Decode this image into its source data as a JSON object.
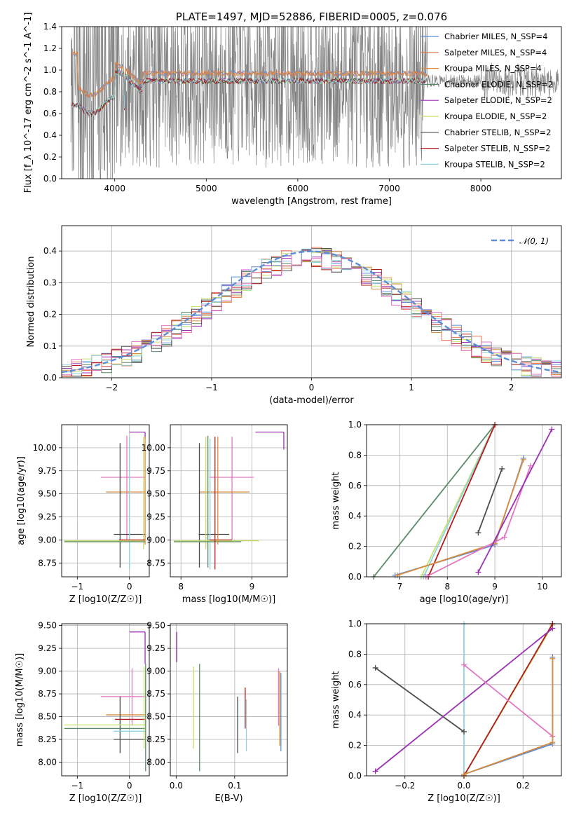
{
  "chart_data": [
    {
      "type": "line",
      "title": "PLATE=1497, MJD=52886, FIBERID=0005, z=0.076",
      "xlabel": "wavelength [Angstrom, rest frame]",
      "ylabel": "Flux [f_λ 10^-17 erg cm^-2 s^-1 A^-1]",
      "xlim": [
        3420,
        8880
      ],
      "ylim": [
        0,
        1.4
      ],
      "xticks": [
        4000,
        5000,
        6000,
        7000,
        8000
      ],
      "yticks": [
        0.0,
        0.2,
        0.4,
        0.6,
        0.8,
        1.0,
        1.2,
        1.4
      ],
      "grid": false,
      "legend_position": "upper right",
      "series": [
        {
          "name": "Chabrier MILES, N_SSP=4",
          "color": "#5b8dd9",
          "group": "high"
        },
        {
          "name": "Salpeter MILES, N_SSP=4",
          "color": "#e8744a",
          "group": "high"
        },
        {
          "name": "Kroupa MILES, N_SSP=4",
          "color": "#d98c3c",
          "group": "high"
        },
        {
          "name": "Chabrier ELODIE, N_SSP=2",
          "color": "#5a8a6a",
          "group": "low"
        },
        {
          "name": "Salpeter ELODIE, N_SSP=2",
          "color": "#9b30b5",
          "group": "low"
        },
        {
          "name": "Kroupa ELODIE, N_SSP=2",
          "color": "#c8e06e",
          "group": "low"
        },
        {
          "name": "Chabrier STELIB, N_SSP=2",
          "color": "#4d4d4d",
          "group": "low"
        },
        {
          "name": "Salpeter STELIB, N_SSP=2",
          "color": "#b51c1c",
          "group": "low"
        },
        {
          "name": "Kroupa STELIB, N_SSP=2",
          "color": "#8fd3e0",
          "group": "low"
        }
      ],
      "data_color": "#808080",
      "data_range": [
        3520,
        8850
      ]
    },
    {
      "type": "histogram",
      "xlabel": "(data-model)/error",
      "ylabel": "Normed distribution",
      "xlim": [
        -2.5,
        2.5
      ],
      "ylim": [
        0,
        0.48
      ],
      "xticks": [
        -2,
        -1,
        0,
        1,
        2
      ],
      "yticks": [
        0.0,
        0.1,
        0.2,
        0.3,
        0.4
      ],
      "grid": true,
      "legend": "𝒩(0, 1)",
      "legend_position": "upper right",
      "reference_curve": {
        "mean": 0,
        "sigma": 1,
        "color": "#5b8dd9"
      },
      "bin_width": 0.1,
      "hist_colors": [
        "#5b8dd9",
        "#e8744a",
        "#d98c3c",
        "#5a8a6a",
        "#9b30b5",
        "#c8e06e",
        "#4d4d4d",
        "#b51c1c",
        "#8fd3e0",
        "#e377c2"
      ]
    },
    {
      "type": "errorbar",
      "xlabel": "Z [log10(Z/Z☉)]",
      "ylabel": "age  [log10(age/yr)]",
      "xlim": [
        -1.3,
        0.38
      ],
      "ylim": [
        8.6,
        10.25
      ],
      "xticks": [
        -1,
        0
      ],
      "yticks": [
        8.75,
        9.0,
        9.25,
        9.5,
        9.75,
        10.0
      ],
      "grid": true,
      "points": [
        {
          "color": "#9b30b5",
          "x": 0.3,
          "y": 10.17,
          "xlo": 0.0,
          "xhi": 0.3,
          "ylo": 10.17,
          "yhi": 10.17
        },
        {
          "color": "#9b30b5",
          "x": 0.3,
          "y": 10.17,
          "xlo": 0.3,
          "xhi": 0.3,
          "ylo": 10.1,
          "yhi": 10.17
        },
        {
          "color": "#e377c2",
          "x": 0.3,
          "y": 9.68,
          "xlo": -0.55,
          "xhi": 0.3,
          "ylo": 9.68,
          "yhi": 9.68
        },
        {
          "color": "#e377c2",
          "x": -0.05,
          "y": 9.6,
          "xlo": -0.05,
          "xhi": -0.05,
          "ylo": 9.0,
          "yhi": 10.13
        },
        {
          "color": "#d98c3c",
          "x": 0.3,
          "y": 9.52,
          "xlo": -0.45,
          "xhi": 0.3,
          "ylo": 9.52,
          "yhi": 9.52
        },
        {
          "color": "#d98c3c",
          "x": 0.3,
          "y": 9.6,
          "xlo": 0.3,
          "xhi": 0.3,
          "ylo": 8.95,
          "yhi": 10.12
        },
        {
          "color": "#4d4d4d",
          "x": -0.18,
          "y": 9.3,
          "xlo": -0.18,
          "xhi": -0.18,
          "ylo": 8.7,
          "yhi": 10.05
        },
        {
          "color": "#4d4d4d",
          "x": 0.3,
          "y": 9.06,
          "xlo": -0.3,
          "xhi": 0.3,
          "ylo": 9.06,
          "yhi": 9.06
        },
        {
          "color": "#8fd3e0",
          "x": 0.0,
          "y": 9.5,
          "xlo": 0.0,
          "xhi": 0.0,
          "ylo": 8.68,
          "yhi": 10.12
        },
        {
          "color": "#c8e06e",
          "x": 0.27,
          "y": 9.6,
          "xlo": 0.27,
          "xhi": 0.27,
          "ylo": 8.9,
          "yhi": 10.12
        },
        {
          "color": "#c8e06e",
          "x": 0.0,
          "y": 8.99,
          "xlo": -1.25,
          "xhi": 0.3,
          "ylo": 8.99,
          "yhi": 8.99
        },
        {
          "color": "#5a8a6a",
          "x": 0.0,
          "y": 8.98,
          "xlo": -1.25,
          "xhi": 0.3,
          "ylo": 8.98,
          "yhi": 8.98
        },
        {
          "color": "#b51c1c",
          "x": 0.0,
          "y": 9.0,
          "xlo": -0.2,
          "xhi": 0.3,
          "ylo": 9.0,
          "yhi": 9.0
        }
      ]
    },
    {
      "type": "errorbar",
      "xlabel": "mass [log10(M/M☉)]",
      "ylabel": "",
      "xlim": [
        7.85,
        9.5
      ],
      "ylim": [
        8.6,
        10.25
      ],
      "xticks": [
        8,
        9
      ],
      "yticks": [
        8.75,
        9.0,
        9.25,
        9.5,
        9.75,
        10.0
      ],
      "grid": true,
      "points": [
        {
          "color": "#9b30b5",
          "x": 9.45,
          "y": 10.17,
          "xlo": 9.05,
          "xhi": 9.45,
          "ylo": 10.17,
          "yhi": 10.17
        },
        {
          "color": "#9b30b5",
          "x": 9.45,
          "y": 10.1,
          "xlo": 9.45,
          "xhi": 9.45,
          "ylo": 9.98,
          "yhi": 10.17
        },
        {
          "color": "#e377c2",
          "x": 8.72,
          "y": 9.68,
          "xlo": 8.4,
          "xhi": 9.03,
          "ylo": 9.68,
          "yhi": 9.68
        },
        {
          "color": "#e377c2",
          "x": 8.72,
          "y": 9.6,
          "xlo": 8.72,
          "xhi": 8.72,
          "ylo": 9.0,
          "yhi": 10.12
        },
        {
          "color": "#d98c3c",
          "x": 8.52,
          "y": 9.52,
          "xlo": 8.25,
          "xhi": 8.97,
          "ylo": 9.52,
          "yhi": 9.52
        },
        {
          "color": "#4d4d4d",
          "x": 8.26,
          "y": 9.3,
          "xlo": 8.26,
          "xhi": 8.26,
          "ylo": 8.7,
          "yhi": 10.05
        },
        {
          "color": "#4d4d4d",
          "x": 8.47,
          "y": 9.06,
          "xlo": 8.25,
          "xhi": 8.68,
          "ylo": 9.06,
          "yhi": 9.06
        },
        {
          "color": "#5a8a6a",
          "x": 8.38,
          "y": 9.5,
          "xlo": 8.38,
          "xhi": 8.38,
          "ylo": 8.7,
          "yhi": 10.13
        },
        {
          "color": "#8fd3e0",
          "x": 8.41,
          "y": 9.5,
          "xlo": 8.41,
          "xhi": 8.41,
          "ylo": 8.68,
          "yhi": 10.1
        },
        {
          "color": "#c8e06e",
          "x": 8.35,
          "y": 9.6,
          "xlo": 8.35,
          "xhi": 8.35,
          "ylo": 8.9,
          "yhi": 10.12
        },
        {
          "color": "#c8e06e",
          "x": 8.5,
          "y": 8.99,
          "xlo": 7.9,
          "xhi": 9.1,
          "ylo": 8.99,
          "yhi": 8.99
        },
        {
          "color": "#5a8a6a",
          "x": 8.3,
          "y": 8.98,
          "xlo": 7.9,
          "xhi": 8.85,
          "ylo": 8.98,
          "yhi": 8.98
        },
        {
          "color": "#b51c1c",
          "x": 8.56,
          "y": 9.0,
          "xlo": 8.4,
          "xhi": 8.72,
          "ylo": 9.0,
          "yhi": 9.0
        },
        {
          "color": "#b51c1c",
          "x": 8.48,
          "y": 9.3,
          "xlo": 8.48,
          "xhi": 8.48,
          "ylo": 8.68,
          "yhi": 10.12
        },
        {
          "color": "#d98c3c",
          "x": 8.52,
          "y": 9.6,
          "xlo": 8.52,
          "xhi": 8.52,
          "ylo": 8.95,
          "yhi": 10.12
        }
      ]
    },
    {
      "type": "line",
      "xlabel": "age  [log10(age/yr)]",
      "ylabel": "mass weight",
      "xlim": [
        6.3,
        10.4
      ],
      "ylim": [
        0,
        1.0
      ],
      "xticks": [
        7,
        8,
        9,
        10
      ],
      "yticks": [
        0.0,
        0.2,
        0.4,
        0.6,
        0.8,
        1.0
      ],
      "grid": true,
      "series": [
        {
          "color": "#5a8a6a",
          "points": [
            [
              6.45,
              0.0
            ],
            [
              9.0,
              1.0
            ]
          ]
        },
        {
          "color": "#c8e06e",
          "points": [
            [
              7.45,
              0.0
            ],
            [
              9.0,
              1.0
            ]
          ]
        },
        {
          "color": "#8fd3e0",
          "points": [
            [
              7.5,
              0.0
            ],
            [
              9.0,
              1.0
            ]
          ]
        },
        {
          "color": "#b51c1c",
          "points": [
            [
              7.6,
              0.0
            ],
            [
              9.0,
              1.0
            ]
          ]
        },
        {
          "color": "#4d4d4d",
          "points": [
            [
              8.65,
              0.29
            ],
            [
              9.15,
              0.71
            ]
          ]
        },
        {
          "color": "#5b8dd9",
          "points": [
            [
              6.9,
              0.01
            ],
            [
              9.0,
              0.21
            ],
            [
              9.6,
              0.78
            ]
          ]
        },
        {
          "color": "#d98c3c",
          "points": [
            [
              6.95,
              0.01
            ],
            [
              9.0,
              0.22
            ],
            [
              9.6,
              0.77
            ]
          ]
        },
        {
          "color": "#e377c2",
          "points": [
            [
              7.55,
              0.0
            ],
            [
              9.2,
              0.26
            ],
            [
              9.75,
              0.73
            ]
          ]
        },
        {
          "color": "#9b30b5",
          "points": [
            [
              8.65,
              0.03
            ],
            [
              10.2,
              0.97
            ]
          ]
        }
      ]
    },
    {
      "type": "errorbar",
      "xlabel": "Z [log10(Z/Z☉)]",
      "ylabel": "mass [log10(M/M☉)]",
      "xlim": [
        -1.3,
        0.38
      ],
      "ylim": [
        7.85,
        9.52
      ],
      "xticks": [
        -1,
        0
      ],
      "yticks": [
        8.0,
        8.25,
        8.5,
        8.75,
        9.0,
        9.25,
        9.5
      ],
      "grid": true,
      "points": [
        {
          "color": "#9b30b5",
          "x": 0.3,
          "y": 9.43,
          "xlo": 0.0,
          "xhi": 0.3,
          "ylo": 9.43,
          "yhi": 9.43
        },
        {
          "color": "#9b30b5",
          "x": 0.3,
          "y": 9.3,
          "xlo": 0.3,
          "xhi": 0.3,
          "ylo": 9.08,
          "yhi": 9.43
        },
        {
          "color": "#e377c2",
          "x": 0.05,
          "y": 8.72,
          "xlo": -0.55,
          "xhi": 0.3,
          "ylo": 8.72,
          "yhi": 8.72
        },
        {
          "color": "#e377c2",
          "x": 0.05,
          "y": 8.72,
          "xlo": 0.05,
          "xhi": 0.05,
          "ylo": 8.4,
          "yhi": 9.03
        },
        {
          "color": "#d98c3c",
          "x": 0.0,
          "y": 8.52,
          "xlo": -0.45,
          "xhi": 0.3,
          "ylo": 8.52,
          "yhi": 8.52
        },
        {
          "color": "#b51c1c",
          "x": 0.0,
          "y": 8.47,
          "xlo": -0.28,
          "xhi": 0.3,
          "ylo": 8.47,
          "yhi": 8.47
        },
        {
          "color": "#4d4d4d",
          "x": -0.18,
          "y": 8.4,
          "xlo": -0.18,
          "xhi": -0.18,
          "ylo": 8.1,
          "yhi": 8.72
        },
        {
          "color": "#4d4d4d",
          "x": 0.0,
          "y": 8.25,
          "xlo": -0.3,
          "xhi": 0.3,
          "ylo": 8.25,
          "yhi": 8.25
        },
        {
          "color": "#c8e06e",
          "x": 0.0,
          "y": 8.41,
          "xlo": -1.25,
          "xhi": 0.3,
          "ylo": 8.41,
          "yhi": 8.41
        },
        {
          "color": "#5a8a6a",
          "x": 0.0,
          "y": 8.37,
          "xlo": -1.25,
          "xhi": 0.3,
          "ylo": 8.37,
          "yhi": 8.37
        },
        {
          "color": "#8fd3e0",
          "x": 0.0,
          "y": 8.34,
          "xlo": -0.3,
          "xhi": 0.3,
          "ylo": 8.34,
          "yhi": 8.34
        },
        {
          "color": "#c8e06e",
          "x": 0.28,
          "y": 8.6,
          "xlo": 0.28,
          "xhi": 0.28,
          "ylo": 8.15,
          "yhi": 9.05
        },
        {
          "color": "#5a8a6a",
          "x": 0.31,
          "y": 8.5,
          "xlo": 0.31,
          "xhi": 0.31,
          "ylo": 7.9,
          "yhi": 9.08
        }
      ]
    },
    {
      "type": "errorbar",
      "xlabel": "E(B-V)",
      "ylabel": "",
      "xlim": [
        -0.01,
        0.19
      ],
      "ylim": [
        7.85,
        9.52
      ],
      "xticks": [
        0.0,
        0.1
      ],
      "yticks": [
        8.0,
        8.25,
        8.5,
        8.75,
        9.0,
        9.25,
        9.5
      ],
      "grid": true,
      "points": [
        {
          "color": "#9b30b5",
          "x": 0.001,
          "y": 9.3,
          "xlo": 0.001,
          "xhi": 0.001,
          "ylo": 9.1,
          "yhi": 9.43
        },
        {
          "color": "#c8e06e",
          "x": 0.03,
          "y": 8.6,
          "xlo": 0.03,
          "xhi": 0.03,
          "ylo": 8.15,
          "yhi": 9.05
        },
        {
          "color": "#5a8a6a",
          "x": 0.04,
          "y": 8.5,
          "xlo": 0.04,
          "xhi": 0.04,
          "ylo": 7.9,
          "yhi": 9.08
        },
        {
          "color": "#4d4d4d",
          "x": 0.105,
          "y": 8.4,
          "xlo": 0.105,
          "xhi": 0.105,
          "ylo": 8.1,
          "yhi": 8.72
        },
        {
          "color": "#8fd3e0",
          "x": 0.12,
          "y": 8.4,
          "xlo": 0.12,
          "xhi": 0.12,
          "ylo": 8.12,
          "yhi": 8.69
        },
        {
          "color": "#b51c1c",
          "x": 0.118,
          "y": 8.6,
          "xlo": 0.118,
          "xhi": 0.118,
          "ylo": 8.37,
          "yhi": 8.82
        },
        {
          "color": "#e377c2",
          "x": 0.175,
          "y": 8.72,
          "xlo": 0.175,
          "xhi": 0.175,
          "ylo": 8.4,
          "yhi": 9.03
        },
        {
          "color": "#d98c3c",
          "x": 0.177,
          "y": 8.6,
          "xlo": 0.177,
          "xhi": 0.177,
          "ylo": 8.18,
          "yhi": 9.0
        },
        {
          "color": "#5b8dd9",
          "x": 0.179,
          "y": 8.55,
          "xlo": 0.179,
          "xhi": 0.179,
          "ylo": 8.12,
          "yhi": 8.98
        }
      ]
    },
    {
      "type": "line",
      "xlabel": "Z [log10(Z/Z☉)]",
      "ylabel": "mass weight",
      "xlim": [
        -0.33,
        0.33
      ],
      "ylim": [
        0,
        1.0
      ],
      "xticks": [
        -0.2,
        0.0,
        0.2
      ],
      "yticks": [
        0.0,
        0.2,
        0.4,
        0.6,
        0.8,
        1.0
      ],
      "grid": true,
      "series": [
        {
          "color": "#8fd3e0",
          "points": [
            [
              0.0,
              0.0
            ],
            [
              0.0,
              1.0
            ]
          ]
        },
        {
          "color": "#5a8a6a",
          "points": [
            [
              0.0,
              0.0
            ],
            [
              0.3,
              1.0
            ]
          ]
        },
        {
          "color": "#c8e06e",
          "points": [
            [
              0.0,
              0.0
            ],
            [
              0.3,
              0.99
            ]
          ]
        },
        {
          "color": "#b51c1c",
          "points": [
            [
              0.0,
              0.0
            ],
            [
              0.3,
              1.0
            ]
          ]
        },
        {
          "color": "#4d4d4d",
          "points": [
            [
              -0.3,
              0.71
            ],
            [
              0.0,
              0.29
            ]
          ]
        },
        {
          "color": "#9b30b5",
          "points": [
            [
              -0.3,
              0.03
            ],
            [
              0.3,
              0.97
            ]
          ]
        },
        {
          "color": "#e377c2",
          "points": [
            [
              0.0,
              0.73
            ],
            [
              0.3,
              0.26
            ]
          ]
        },
        {
          "color": "#5b8dd9",
          "points": [
            [
              0.0,
              0.01
            ],
            [
              0.3,
              0.21
            ],
            [
              0.3,
              0.78
            ]
          ]
        },
        {
          "color": "#d98c3c",
          "points": [
            [
              0.0,
              0.01
            ],
            [
              0.3,
              0.22
            ],
            [
              0.3,
              0.77
            ]
          ]
        }
      ]
    }
  ]
}
